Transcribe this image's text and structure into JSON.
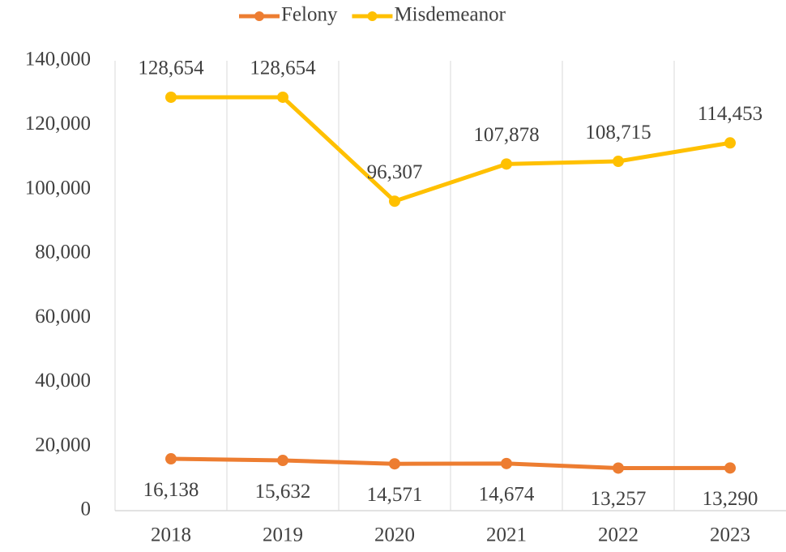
{
  "chart_data": {
    "type": "line",
    "categories": [
      "2018",
      "2019",
      "2020",
      "2021",
      "2022",
      "2023"
    ],
    "series": [
      {
        "name": "Felony",
        "color": "#ED7D31",
        "values": [
          16138,
          15632,
          14571,
          14674,
          13257,
          13290
        ],
        "value_labels": [
          "16,138",
          "15,632",
          "14,571",
          "14,674",
          "13,257",
          "13,290"
        ]
      },
      {
        "name": "Misdemeanor",
        "color": "#FFC000",
        "values": [
          128654,
          128654,
          96307,
          107878,
          108715,
          114453
        ],
        "value_labels": [
          "128,654",
          "128,654",
          "96,307",
          "107,878",
          "108,715",
          "114,453"
        ]
      }
    ],
    "ylim": [
      0,
      140000
    ],
    "yticks": [
      0,
      {
        "value": 20000,
        "label": "20,000"
      },
      {
        "value": 40000,
        "label": "40,000"
      },
      {
        "value": 60000,
        "label": "60,000"
      },
      {
        "value": 80000,
        "label": "80,000"
      },
      {
        "value": 100000,
        "label": "100,000"
      },
      {
        "value": 120000,
        "label": "120,000"
      },
      {
        "value": 140000,
        "label": "140,000"
      }
    ],
    "legend": "top"
  }
}
